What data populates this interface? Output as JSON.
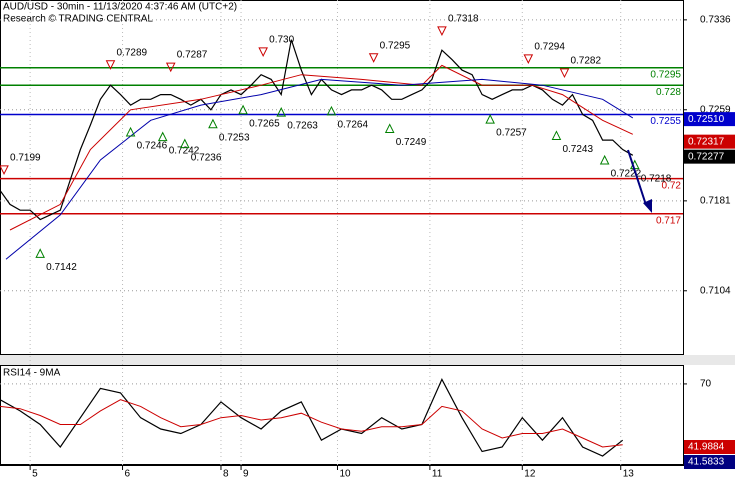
{
  "chart_data": [
    {
      "type": "line",
      "title": "AUD/USD - 30min - 11/13/2020 4:37:46 AM (UTC+2)",
      "subtitle": "Research © TRADING CENTRAL",
      "x": [
        0,
        5,
        10,
        15,
        20,
        25,
        30,
        35,
        40,
        45,
        50,
        55,
        60,
        65,
        70,
        75,
        80,
        85,
        90,
        95,
        100,
        105,
        110,
        115,
        120,
        125,
        130,
        135,
        140,
        145,
        150,
        155,
        160,
        165,
        170,
        175,
        180,
        185,
        190,
        195,
        200,
        205,
        210,
        215,
        220,
        225,
        230,
        235,
        240,
        245,
        250,
        255,
        260,
        265,
        270,
        275,
        280,
        285,
        290,
        295,
        300,
        305,
        310,
        315
      ],
      "series": [
        {
          "color": "#000000",
          "values": [
            0.719,
            0.7178,
            0.7173,
            0.7173,
            0.7165,
            0.7169,
            0.7173,
            0.7199,
            0.7225,
            0.7246,
            0.7268,
            0.728,
            0.7272,
            0.7263,
            0.7268,
            0.7268,
            0.7272,
            0.7272,
            0.7268,
            0.7263,
            0.7268,
            0.7259,
            0.7272,
            0.7276,
            0.7272,
            0.728,
            0.7289,
            0.7285,
            0.7272,
            0.7319,
            0.7293,
            0.7272,
            0.7285,
            0.7276,
            0.7272,
            0.7276,
            0.7276,
            0.728,
            0.7276,
            0.7268,
            0.7268,
            0.7272,
            0.7276,
            0.7285,
            0.731,
            0.7302,
            0.7293,
            0.7289,
            0.7272,
            0.7268,
            0.7272,
            0.7276,
            0.7276,
            0.728,
            0.7276,
            0.7268,
            0.7263,
            0.7272,
            0.7255,
            0.725,
            0.7233,
            0.7233,
            0.7225,
            0.722
          ]
        },
        {
          "color": "#cc0000",
          "x": [
            5,
            30,
            45,
            65,
            100,
            130,
            150,
            180,
            210,
            220,
            240,
            265,
            280,
            300,
            315
          ],
          "values": [
            0.7156,
            0.7178,
            0.7225,
            0.7259,
            0.7268,
            0.728,
            0.7289,
            0.7285,
            0.728,
            0.7297,
            0.728,
            0.728,
            0.7272,
            0.725,
            0.7238
          ]
        },
        {
          "color": "#0000aa",
          "x": [
            3,
            30,
            50,
            75,
            100,
            130,
            160,
            200,
            240,
            270,
            300,
            315
          ],
          "values": [
            0.7131,
            0.7169,
            0.7216,
            0.725,
            0.7263,
            0.7272,
            0.7285,
            0.728,
            0.7285,
            0.728,
            0.7268,
            0.7252
          ]
        }
      ],
      "xlim": [
        0,
        340
      ],
      "xticks": [
        {
          "value": 15,
          "label": "5"
        },
        {
          "value": 61,
          "label": "6"
        },
        {
          "value": 110,
          "label": "8"
        },
        {
          "value": 120,
          "label": "9"
        },
        {
          "value": 168,
          "label": "10"
        },
        {
          "value": 214,
          "label": "11"
        },
        {
          "value": 260,
          "label": "12"
        },
        {
          "value": 309,
          "label": "13"
        }
      ],
      "ylim": [
        0.7049,
        0.7353
      ],
      "yticks": [
        0.7104,
        0.7181,
        0.7259,
        0.7336
      ],
      "levels": [
        {
          "value": 0.7295,
          "color": "#008000"
        },
        {
          "value": 0.728,
          "color": "#008000"
        },
        {
          "value": 0.7255,
          "color": "#0000cc"
        },
        {
          "value": 0.72,
          "color": "#cc0000"
        },
        {
          "value": 0.717,
          "color": "#cc0000"
        }
      ],
      "price_labels": [
        {
          "value": 0.7251,
          "label": "0.72510",
          "color": "#0000cc"
        },
        {
          "value": 0.72317,
          "color": "#cc0000"
        },
        {
          "value": 0.72277,
          "color": "#000000"
        }
      ],
      "annotations": [
        {
          "value": 0.7199,
          "x": 2,
          "dir": "down"
        },
        {
          "value": 0.7142,
          "x": 20,
          "dir": "up"
        },
        {
          "value": 0.7289,
          "x": 55,
          "dir": "down"
        },
        {
          "value": 0.7246,
          "x": 65,
          "dir": "up"
        },
        {
          "value": 0.7287,
          "x": 85,
          "dir": "down"
        },
        {
          "value": 0.7242,
          "x": 81,
          "dir": "up"
        },
        {
          "value": 0.7236,
          "x": 92,
          "dir": "up"
        },
        {
          "value": 0.7253,
          "x": 106,
          "dir": "up"
        },
        {
          "value": 0.73,
          "label": "0.730",
          "x": 131,
          "dir": "down"
        },
        {
          "value": 0.7265,
          "x": 121,
          "dir": "up"
        },
        {
          "value": 0.7263,
          "x": 140,
          "dir": "up"
        },
        {
          "value": 0.7264,
          "x": 165,
          "dir": "up"
        },
        {
          "value": 0.7295,
          "x": 186,
          "dir": "down"
        },
        {
          "value": 0.7249,
          "x": 194,
          "dir": "up"
        },
        {
          "value": 0.7318,
          "x": 220,
          "dir": "down"
        },
        {
          "value": 0.7257,
          "x": 244,
          "dir": "up"
        },
        {
          "value": 0.7294,
          "x": 263,
          "dir": "down"
        },
        {
          "value": 0.7282,
          "x": 281,
          "dir": "down"
        },
        {
          "value": 0.7243,
          "x": 277,
          "dir": "up"
        },
        {
          "value": 0.7222,
          "x": 301,
          "dir": "up"
        },
        {
          "value": 0.7218,
          "x": 316,
          "dir": "up"
        }
      ]
    },
    {
      "type": "line",
      "title": "RSI14 - 9MA",
      "x": [
        0,
        10,
        20,
        30,
        40,
        50,
        60,
        70,
        80,
        90,
        100,
        110,
        120,
        130,
        140,
        150,
        160,
        170,
        180,
        190,
        200,
        210,
        220,
        230,
        240,
        250,
        260,
        270,
        280,
        290,
        300,
        310
      ],
      "series": [
        {
          "color": "#000000",
          "values": [
            63,
            58,
            52,
            42,
            55,
            68,
            66,
            55,
            50,
            48,
            52,
            62,
            55,
            50,
            58,
            62,
            45,
            50,
            48,
            55,
            50,
            52,
            72,
            55,
            40,
            42,
            55,
            45,
            55,
            42,
            38,
            45
          ]
        },
        {
          "color": "#cc0000",
          "values": [
            60,
            59,
            56,
            52,
            52,
            58,
            63,
            60,
            55,
            51,
            52,
            55,
            56,
            54,
            55,
            57,
            53,
            50,
            49,
            51,
            51,
            52,
            60,
            58,
            50,
            46,
            48,
            48,
            50,
            46,
            42,
            43
          ]
        }
      ],
      "xlim": [
        0,
        340
      ],
      "ylim": [
        34,
        78.4
      ],
      "yticks": [
        70
      ],
      "value_boxes": [
        {
          "value": 41.9884,
          "color": "#cc0000"
        },
        {
          "value": 41.5833,
          "color": "#000080"
        }
      ]
    }
  ]
}
